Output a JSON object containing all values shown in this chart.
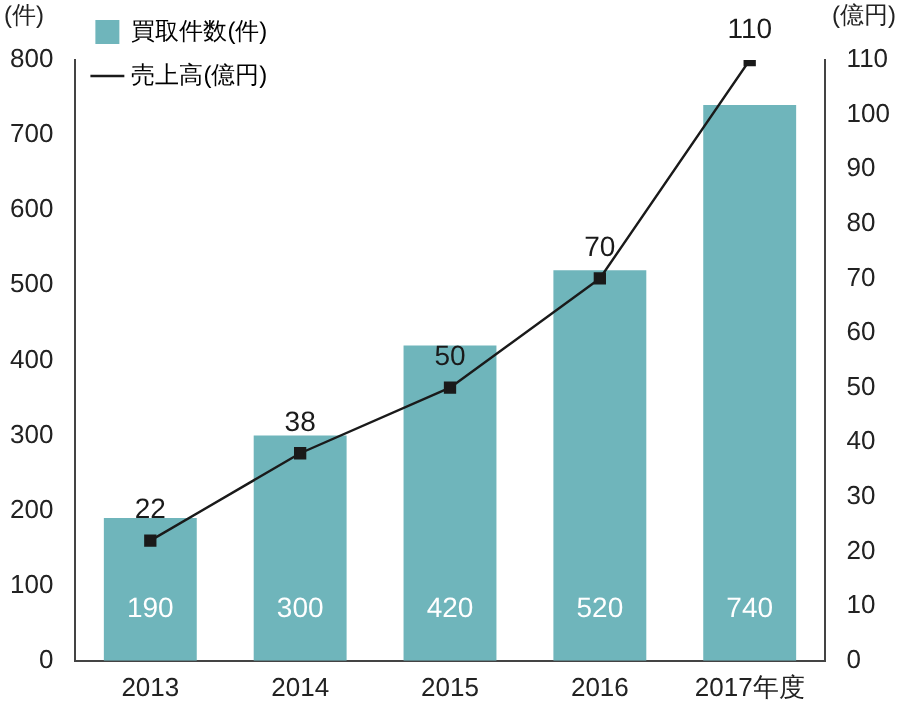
{
  "chart_data": {
    "type": "bar",
    "categories": [
      "2013",
      "2014",
      "2015",
      "2016",
      "2017年度"
    ],
    "ylabel": "(件)",
    "y2label": "(億円)",
    "series": [
      {
        "name": "買取件数(件)",
        "color": "#6fb5bb",
        "values": [
          190,
          300,
          420,
          520,
          740
        ]
      },
      {
        "name": "売上高(億円)",
        "type": "line",
        "axis": "y2",
        "color": "#1a1a1a",
        "values": [
          22,
          38,
          50,
          70,
          110
        ],
        "marker": "square"
      }
    ],
    "ylim": [
      0,
      800
    ],
    "yticks": [
      0,
      100,
      200,
      300,
      400,
      500,
      600,
      700,
      800
    ],
    "y2lim": [
      0,
      110
    ],
    "y2ticks": [
      0,
      10,
      20,
      30,
      40,
      50,
      60,
      70,
      80,
      90,
      100,
      110
    ],
    "data_labels": true,
    "grid": false,
    "legend": "top left"
  }
}
